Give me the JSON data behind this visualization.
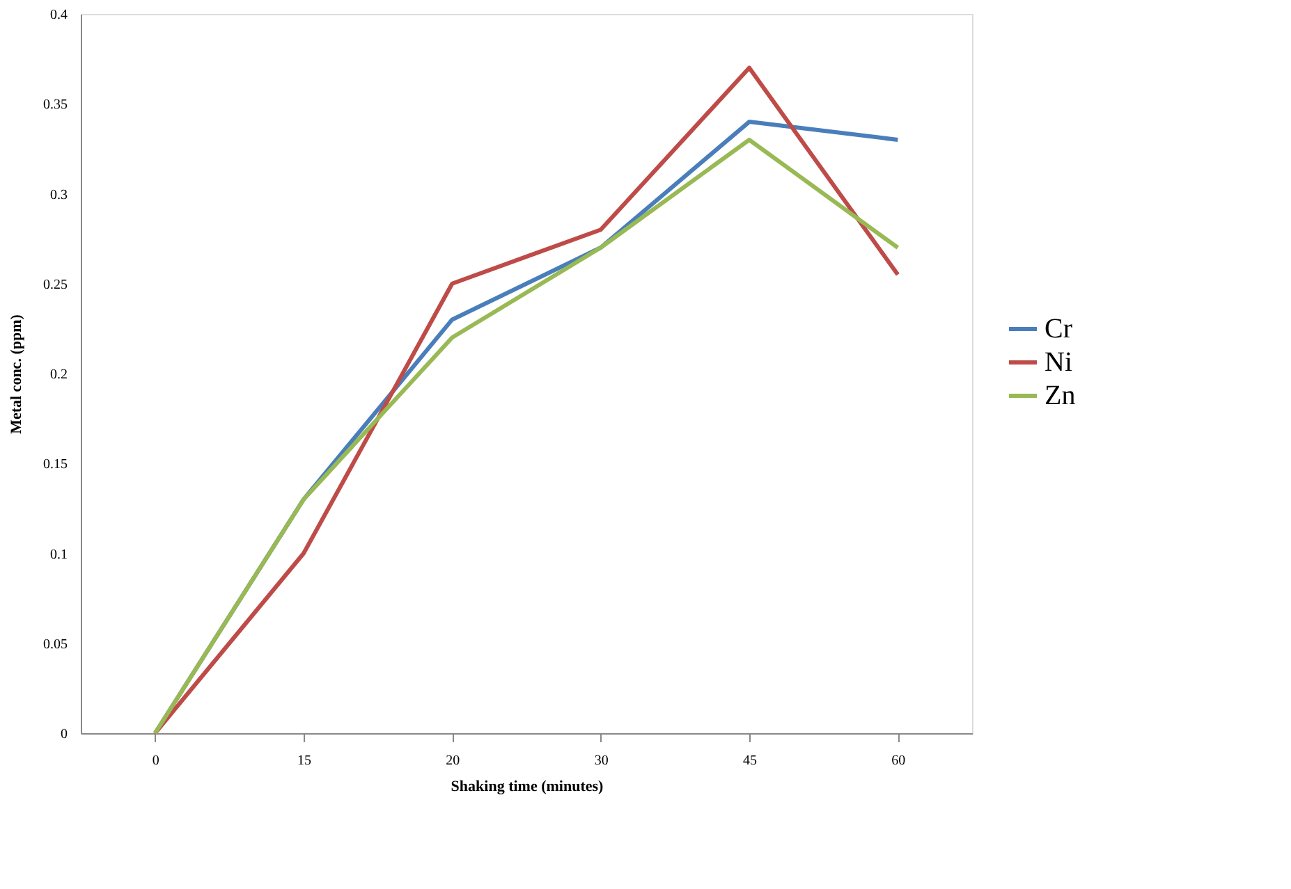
{
  "chart_data": {
    "type": "line",
    "xlabel": "Shaking time (minutes)",
    "ylabel": "Metal conc. (ppm)",
    "categories": [
      "0",
      "15",
      "20",
      "30",
      "45",
      "60"
    ],
    "series": [
      {
        "name": "Cr",
        "color": "#4a7ebb",
        "values": [
          0,
          0.13,
          0.23,
          0.27,
          0.34,
          0.33
        ]
      },
      {
        "name": "Ni",
        "color": "#be4b48",
        "values": [
          0,
          0.1,
          0.25,
          0.28,
          0.37,
          0.255
        ]
      },
      {
        "name": "Zn",
        "color": "#98b954",
        "values": [
          0,
          0.13,
          0.22,
          0.27,
          0.33,
          0.27
        ]
      }
    ],
    "ylim": [
      0,
      0.4
    ],
    "yticks": [
      0,
      0.05,
      0.1,
      0.15,
      0.2,
      0.25,
      0.3,
      0.35,
      0.4
    ],
    "grid": false,
    "legend": "right",
    "marker": "none",
    "line_style": "solid"
  }
}
